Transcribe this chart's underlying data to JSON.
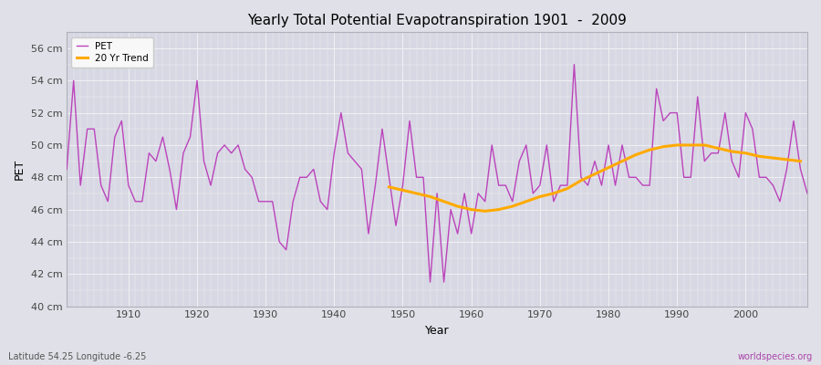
{
  "title": "Yearly Total Potential Evapotranspiration 1901  -  2009",
  "xlabel": "Year",
  "ylabel": "PET",
  "bottom_left_label": "Latitude 54.25 Longitude -6.25",
  "bottom_right_label": "worldspecies.org",
  "ylim": [
    40,
    57
  ],
  "yticks": [
    40,
    42,
    44,
    46,
    48,
    50,
    52,
    54,
    56
  ],
  "ytick_labels": [
    "40 cm",
    "42 cm",
    "44 cm",
    "46 cm",
    "48 cm",
    "50 cm",
    "52 cm",
    "54 cm",
    "56 cm"
  ],
  "fig_bg_color": "#e0e0e8",
  "plot_bg_color": "#d8d8e4",
  "grid_color": "#f0f0f4",
  "pet_color": "#bb44bb",
  "trend_color": "#ffaa00",
  "legend_bg": "#f8f8f8",
  "legend_edge": "#cccccc",
  "years": [
    1901,
    1902,
    1903,
    1904,
    1905,
    1906,
    1907,
    1908,
    1909,
    1910,
    1911,
    1912,
    1913,
    1914,
    1915,
    1916,
    1917,
    1918,
    1919,
    1920,
    1921,
    1922,
    1923,
    1924,
    1925,
    1926,
    1927,
    1928,
    1929,
    1930,
    1931,
    1932,
    1933,
    1934,
    1935,
    1936,
    1937,
    1938,
    1939,
    1940,
    1941,
    1942,
    1943,
    1944,
    1945,
    1946,
    1947,
    1948,
    1949,
    1950,
    1951,
    1952,
    1953,
    1954,
    1955,
    1956,
    1957,
    1958,
    1959,
    1960,
    1961,
    1962,
    1963,
    1964,
    1965,
    1966,
    1967,
    1968,
    1969,
    1970,
    1971,
    1972,
    1973,
    1974,
    1975,
    1976,
    1977,
    1978,
    1979,
    1980,
    1981,
    1982,
    1983,
    1984,
    1985,
    1986,
    1987,
    1988,
    1989,
    1990,
    1991,
    1992,
    1993,
    1994,
    1995,
    1996,
    1997,
    1998,
    1999,
    2000,
    2001,
    2002,
    2003,
    2004,
    2005,
    2006,
    2007,
    2008,
    2009
  ],
  "pet_values": [
    48.5,
    54.0,
    47.5,
    51.0,
    51.0,
    47.5,
    46.5,
    50.5,
    51.5,
    47.5,
    46.5,
    46.5,
    49.5,
    49.0,
    50.5,
    48.5,
    46.0,
    49.5,
    50.5,
    54.0,
    49.0,
    47.5,
    49.5,
    50.0,
    49.5,
    50.0,
    48.5,
    48.0,
    46.5,
    46.5,
    46.5,
    44.0,
    43.5,
    46.5,
    48.0,
    48.0,
    48.5,
    46.5,
    46.0,
    49.5,
    52.0,
    49.5,
    49.0,
    48.5,
    44.5,
    47.5,
    51.0,
    48.0,
    45.0,
    47.5,
    51.5,
    48.0,
    48.0,
    41.5,
    47.0,
    41.5,
    46.0,
    44.5,
    47.0,
    44.5,
    47.0,
    46.5,
    50.0,
    47.5,
    47.5,
    46.5,
    49.0,
    50.0,
    47.0,
    47.5,
    50.0,
    46.5,
    47.5,
    47.5,
    55.0,
    48.0,
    47.5,
    49.0,
    47.5,
    50.0,
    47.5,
    50.0,
    48.0,
    48.0,
    47.5,
    47.5,
    53.5,
    51.5,
    52.0,
    52.0,
    48.0,
    48.0,
    53.0,
    49.0,
    49.5,
    49.5,
    52.0,
    49.0,
    48.0,
    52.0,
    51.0,
    48.0,
    48.0,
    47.5,
    46.5,
    48.5,
    51.5,
    48.5,
    47.0
  ],
  "trend_values_x": [
    1948,
    1950,
    1952,
    1954,
    1956,
    1958,
    1960,
    1962,
    1964,
    1966,
    1968,
    1970,
    1972,
    1974,
    1976,
    1978,
    1980,
    1982,
    1984,
    1986,
    1988,
    1990,
    1992,
    1994,
    1996,
    1998,
    2000,
    2002,
    2004,
    2006,
    2008
  ],
  "trend_values_y": [
    47.4,
    47.2,
    47.0,
    46.8,
    46.5,
    46.2,
    46.0,
    45.9,
    46.0,
    46.2,
    46.5,
    46.8,
    47.0,
    47.3,
    47.8,
    48.2,
    48.6,
    49.0,
    49.4,
    49.7,
    49.9,
    50.0,
    50.0,
    50.0,
    49.8,
    49.6,
    49.5,
    49.3,
    49.2,
    49.1,
    49.0
  ],
  "xticks": [
    1910,
    1920,
    1930,
    1940,
    1950,
    1960,
    1970,
    1980,
    1990,
    2000
  ],
  "xlim": [
    1901,
    2009
  ]
}
